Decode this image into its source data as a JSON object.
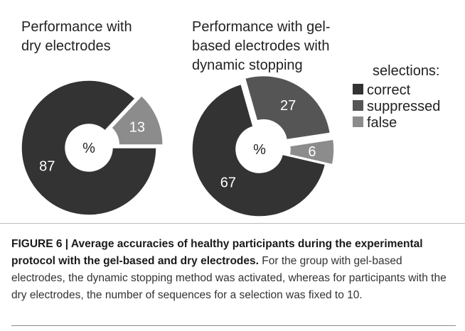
{
  "chart_data": [
    {
      "type": "pie",
      "title": "Performance with dry electrodes",
      "center_label": "%",
      "slices": [
        {
          "label": "correct",
          "value": 87,
          "color": "#333333",
          "exploded": false
        },
        {
          "label": "false",
          "value": 13,
          "color": "#8c8c8c",
          "exploded": true
        }
      ]
    },
    {
      "type": "pie",
      "title": "Performance with gel-based electrodes with dynamic stopping",
      "center_label": "%",
      "slices": [
        {
          "label": "correct",
          "value": 67,
          "color": "#333333",
          "exploded": false
        },
        {
          "label": "suppressed",
          "value": 27,
          "color": "#555555",
          "exploded": true
        },
        {
          "label": "false",
          "value": 6,
          "color": "#8c8c8c",
          "exploded": true
        }
      ]
    }
  ],
  "titles": {
    "left_line1": "Performance with",
    "left_line2": "dry electrodes",
    "right_line1": "Performance with gel-",
    "right_line2": "based electrodes with",
    "right_line3": "dynamic stopping"
  },
  "legend": {
    "title": "selections:",
    "items": [
      {
        "label": "correct",
        "color": "#333333"
      },
      {
        "label": "suppressed",
        "color": "#555555"
      },
      {
        "label": "false",
        "color": "#8c8c8c"
      }
    ]
  },
  "caption": {
    "bold": "FIGURE 6 | Average accuracies of healthy participants during the experimental protocol with the gel-based and dry electrodes.",
    "text": " For the group with gel-based electrodes, the dynamic stopping method was activated, whereas for participants with the dry electrodes, the number of sequences for a selection was fixed to 10."
  }
}
